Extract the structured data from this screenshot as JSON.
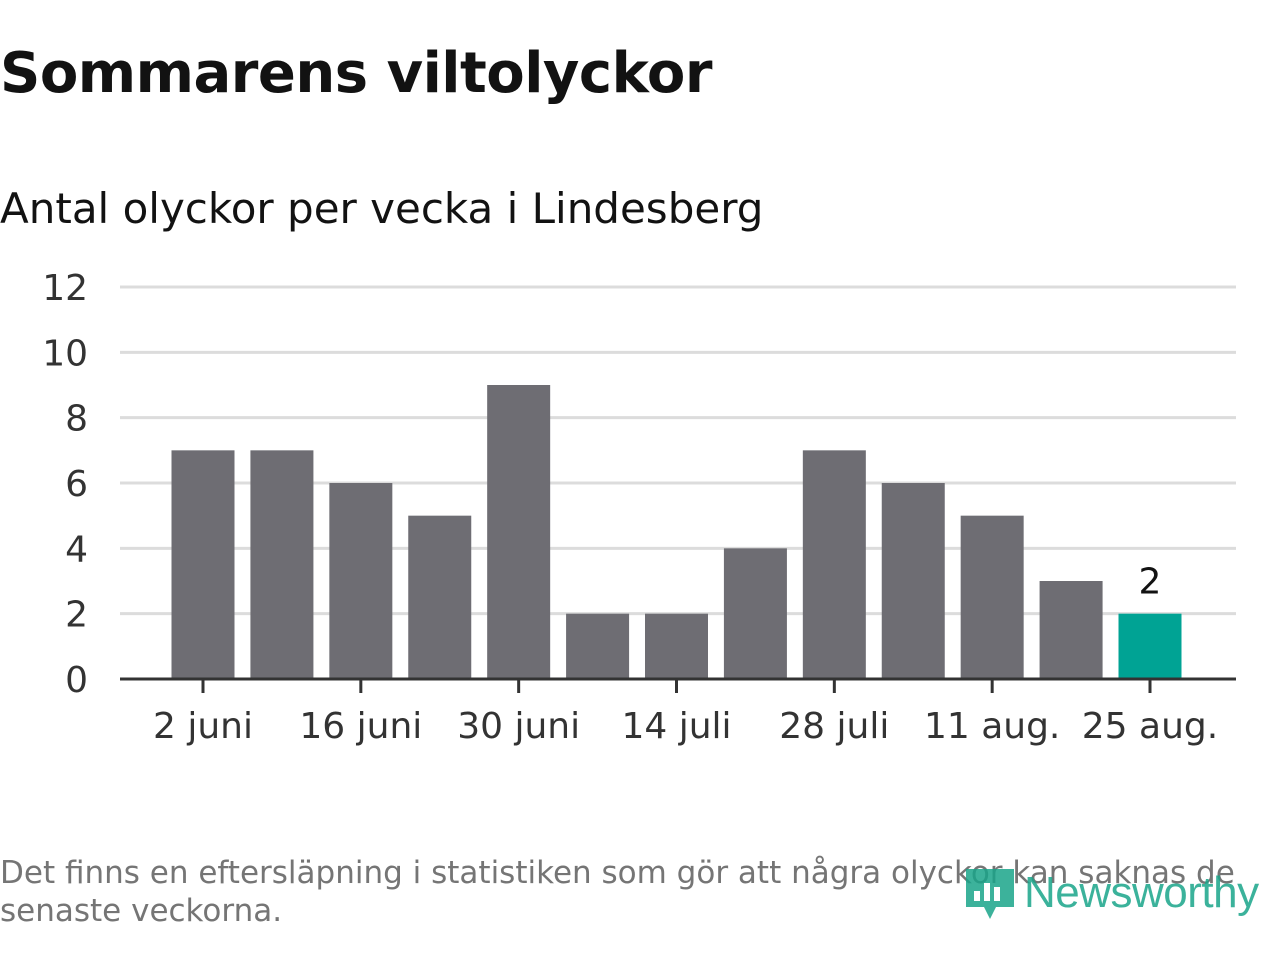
{
  "title": "Sommarens viltolyckor",
  "subtitle": "Antal olyckor per vecka i Lindesberg",
  "footnote": "Det finns en eftersläpning i statistiken som gör att några olyckor kan saknas de senaste veckorna.",
  "brand": "Newsworthy",
  "colors": {
    "bar": "#6e6d73",
    "highlight": "#00a394",
    "grid": "#dcdcdc",
    "axis": "#333333",
    "text": "#333333"
  },
  "chart_data": {
    "type": "bar",
    "x": [
      "2 juni",
      "9 juni",
      "16 juni",
      "23 juni",
      "30 juni",
      "7 juli",
      "14 juli",
      "21 juli",
      "28 juli",
      "4 aug.",
      "11 aug.",
      "18 aug.",
      "25 aug."
    ],
    "values": [
      7,
      7,
      6,
      5,
      9,
      2,
      2,
      4,
      7,
      6,
      5,
      3,
      2
    ],
    "x_tick_labels": [
      "2 juni",
      "16 juni",
      "30 juni",
      "14 juli",
      "28 juli",
      "11 aug.",
      "25 aug."
    ],
    "y_ticks": [
      0,
      2,
      4,
      6,
      8,
      10,
      12
    ],
    "ylim": [
      0,
      12
    ],
    "highlight_index": 12,
    "data_labels": [
      {
        "index": 12,
        "text": "2"
      }
    ],
    "grid": true
  }
}
